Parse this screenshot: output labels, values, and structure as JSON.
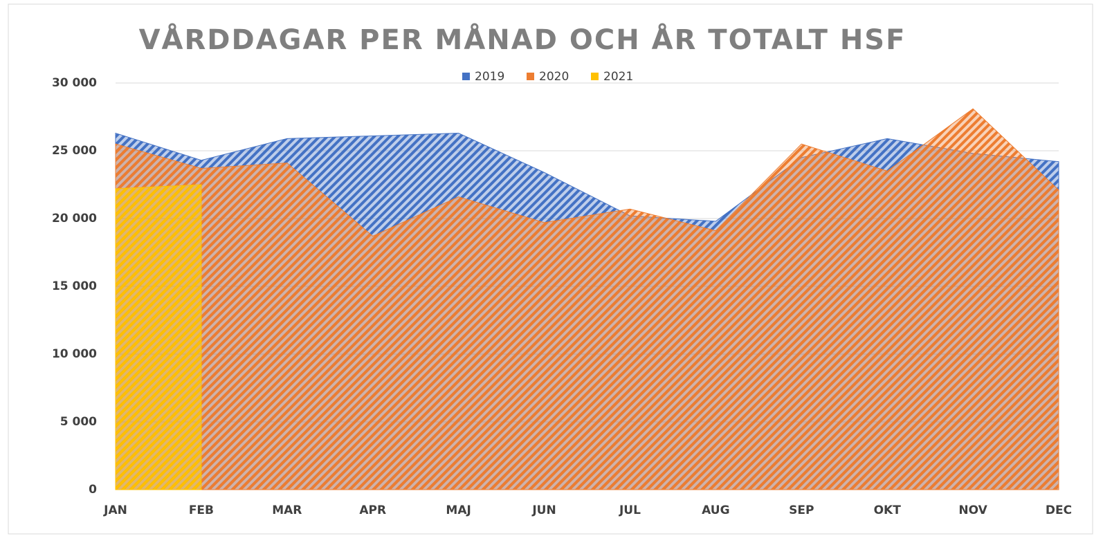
{
  "chart_data": {
    "type": "area",
    "title": "VÅRDDAGAR PER MÅNAD OCH ÅR TOTALT HSF",
    "categories": [
      "JAN",
      "FEB",
      "MAR",
      "APR",
      "MAJ",
      "JUN",
      "JUL",
      "AUG",
      "SEP",
      "OKT",
      "NOV",
      "DEC"
    ],
    "series": [
      {
        "name": "2019",
        "color": "#4472c4",
        "values": [
          26300,
          24300,
          25900,
          26100,
          26300,
          23400,
          20200,
          19800,
          24500,
          25900,
          24800,
          24200
        ]
      },
      {
        "name": "2020",
        "color": "#ed7d31",
        "values": [
          25500,
          23700,
          24100,
          18700,
          21600,
          19700,
          20700,
          19100,
          25500,
          23500,
          28100,
          22100
        ]
      },
      {
        "name": "2021",
        "color": "#ffc000",
        "values": [
          22200,
          22500,
          null,
          null,
          null,
          null,
          null,
          null,
          null,
          null,
          null,
          null
        ]
      }
    ],
    "ylim": [
      0,
      30000
    ],
    "yticks": [
      0,
      {
        "value": 5000,
        "label": "5 000"
      },
      {
        "value": 10000,
        "label": "10 000"
      },
      {
        "value": 15000,
        "label": "15 000"
      },
      {
        "value": 20000,
        "label": "20 000"
      },
      {
        "value": 25000,
        "label": "25 000"
      },
      {
        "value": 30000,
        "label": "30 000"
      }
    ],
    "grid": true,
    "legend": "top"
  }
}
